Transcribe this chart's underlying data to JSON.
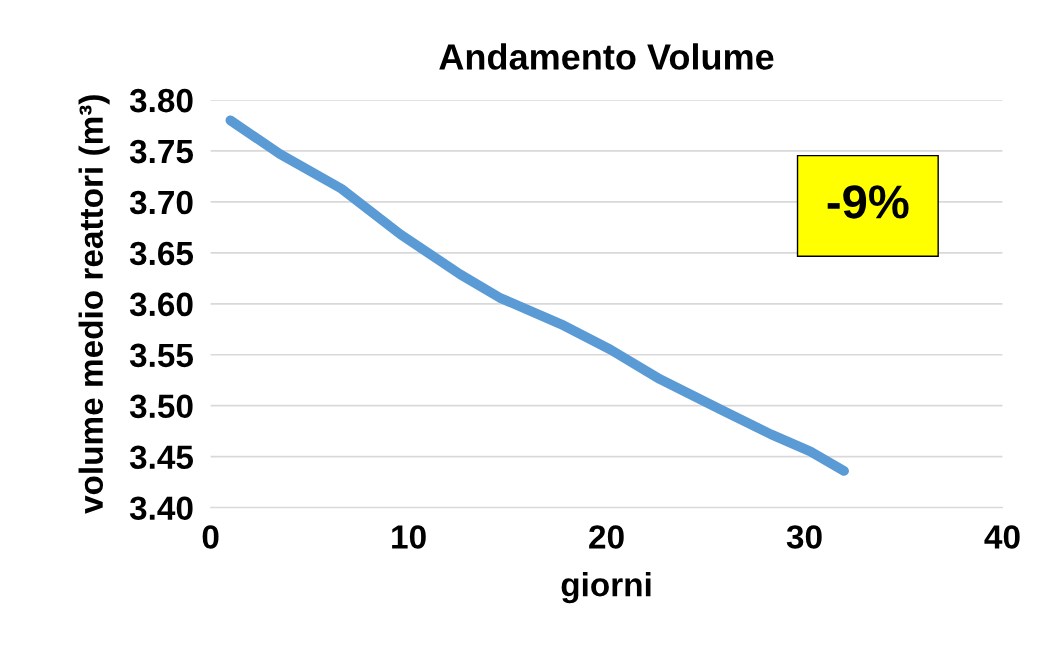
{
  "chart_data": {
    "type": "line",
    "title": "Andamento Volume",
    "xlabel": "giorni",
    "ylabel": "volume medio reattori (m³)",
    "series": [
      {
        "color": "#5b9bd5",
        "x": [
          1,
          3.5,
          6.6,
          9.6,
          12.6,
          14.6,
          17.7,
          20.2,
          22.7,
          25.8,
          28.3,
          30.3,
          32
        ],
        "values": [
          3.78,
          3.747,
          3.713,
          3.668,
          3.629,
          3.606,
          3.58,
          3.555,
          3.526,
          3.496,
          3.472,
          3.455,
          3.436
        ]
      }
    ],
    "xlim": [
      0,
      40
    ],
    "xticks": [
      0,
      10,
      20,
      30,
      40
    ],
    "ylim": [
      3.4,
      3.8
    ],
    "yticks": [
      {
        "value": 3.4,
        "label": "3.40"
      },
      {
        "value": 3.45,
        "label": "3.45"
      },
      {
        "value": 3.5,
        "label": "3.50"
      },
      {
        "value": 3.55,
        "label": "3.55"
      },
      {
        "value": 3.6,
        "label": "3.60"
      },
      {
        "value": 3.65,
        "label": "3.65"
      },
      {
        "value": 3.7,
        "label": "3.70"
      },
      {
        "value": 3.75,
        "label": "3.75"
      },
      {
        "value": 3.8,
        "label": "3.80"
      }
    ],
    "grid": "y",
    "marker": "none",
    "line_style": "solid",
    "annotations": [
      "-9%"
    ]
  }
}
